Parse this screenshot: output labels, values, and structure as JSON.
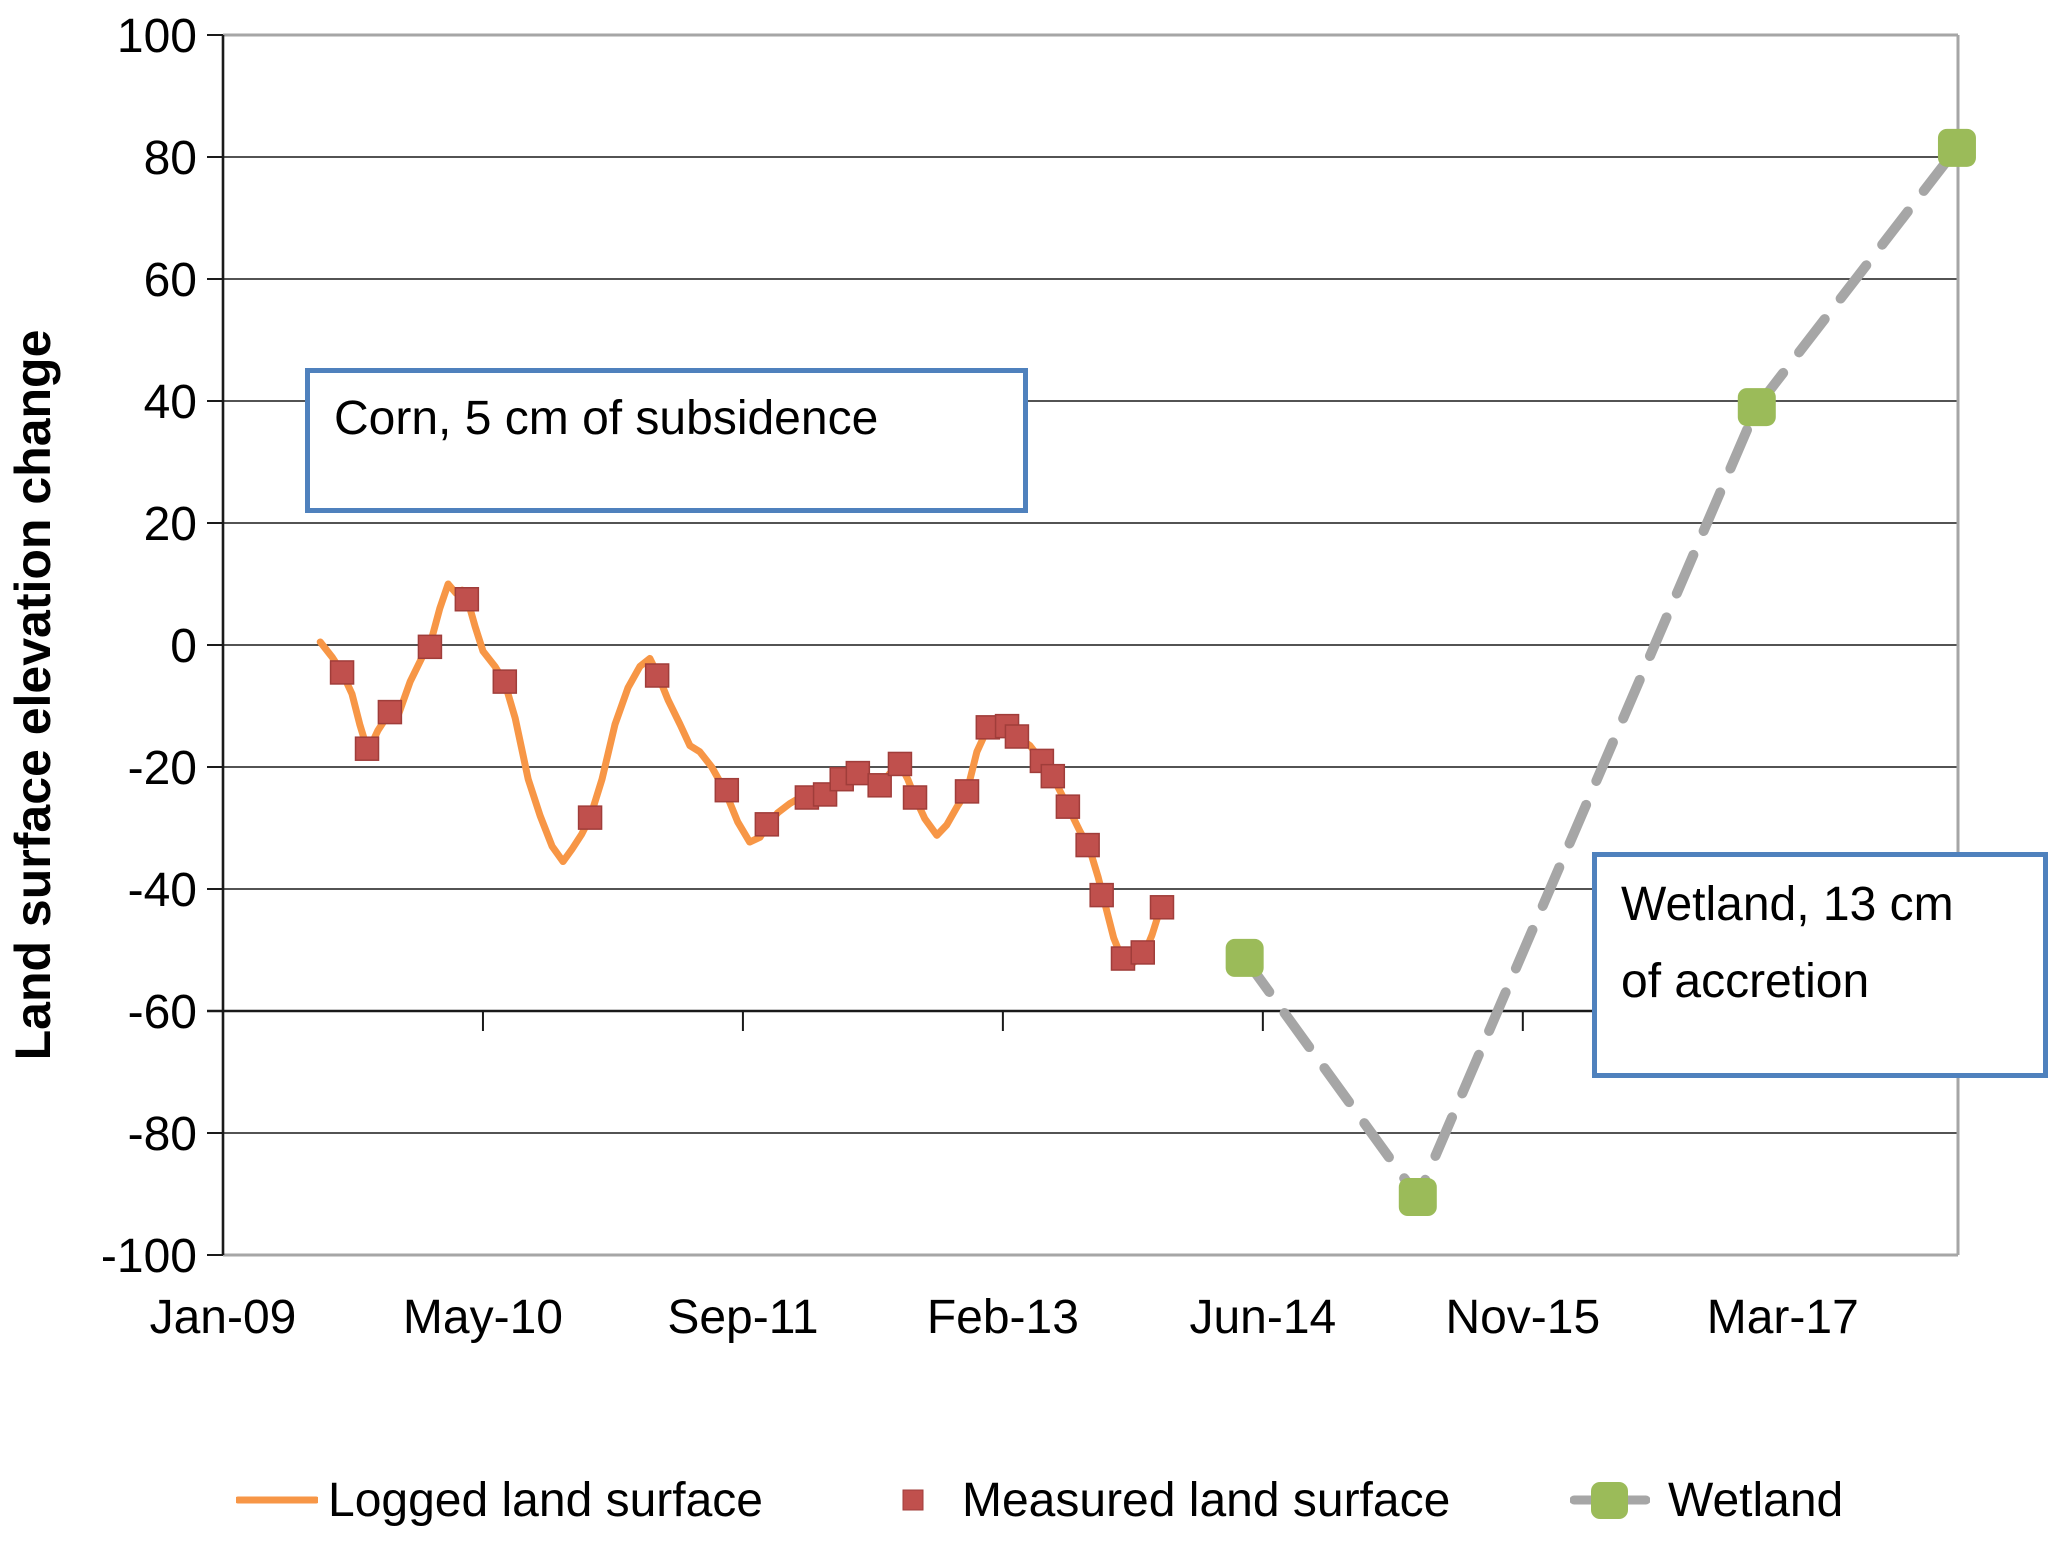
{
  "figure": {
    "y_axis_title": "Land surface elevation change",
    "annotations": {
      "corn": "Corn, 5 cm of subsidence",
      "wetland_line1": "Wetland, 13 cm",
      "wetland_line2": "of accretion"
    },
    "legend": [
      {
        "label": "Logged land surface",
        "swatch": "orange-line",
        "color": "#F79646"
      },
      {
        "label": "Measured land surface",
        "swatch": "red-square",
        "color": "#C0504D"
      },
      {
        "label": "Wetland",
        "swatch": "gray-line-green-square",
        "line_color": "#A6A6A6",
        "marker_color": "#9BBB59"
      }
    ],
    "colors": {
      "logged_line": "#F79646",
      "measured_marker": "#C0504D",
      "measured_marker_edge": "#A03D3A",
      "wetland_line": "#A6A6A6",
      "wetland_marker": "#9BBB59",
      "callout_border": "#4F81BD",
      "gridline": "#1a1a1a",
      "axis": "#1a1a1a",
      "plot_border": "#A6A6A6",
      "text": "#000000"
    }
  },
  "chart_data": {
    "type": "line",
    "title": "",
    "xlabel": "",
    "ylabel": "Land surface elevation change",
    "ylim": [
      -100,
      100
    ],
    "y_ticks": [
      100,
      80,
      60,
      40,
      20,
      0,
      -20,
      -40,
      -60,
      -80,
      -100
    ],
    "x_axis_note": "x in days since Jan-2009; major unit 500 days",
    "x_domain_days": [
      0,
      3337
    ],
    "x_ticks": [
      {
        "day": 0,
        "label": "Jan-09"
      },
      {
        "day": 500,
        "label": "May-10"
      },
      {
        "day": 1000,
        "label": "Sep-11"
      },
      {
        "day": 1500,
        "label": "Feb-13"
      },
      {
        "day": 2000,
        "label": "Jun-14"
      },
      {
        "day": 2500,
        "label": "Nov-15"
      },
      {
        "day": 3000,
        "label": "Mar-17"
      }
    ],
    "grid": true,
    "legend_position": "bottom",
    "category_axis_value": -60,
    "series": [
      {
        "name": "Logged land surface",
        "type": "line",
        "color": "#F79646",
        "points": [
          [
            187,
            0.5
          ],
          [
            210,
            -2
          ],
          [
            229,
            -4.5
          ],
          [
            248,
            -8
          ],
          [
            263,
            -13
          ],
          [
            279,
            -17.5
          ],
          [
            298,
            -14
          ],
          [
            321,
            -11
          ],
          [
            337,
            -11.5
          ],
          [
            360,
            -6
          ],
          [
            383,
            -2
          ],
          [
            398,
            0
          ],
          [
            417,
            6
          ],
          [
            433,
            10
          ],
          [
            448,
            8.5
          ],
          [
            460,
            9
          ],
          [
            469,
            7.8
          ],
          [
            485,
            3
          ],
          [
            500,
            -1
          ],
          [
            523,
            -3.5
          ],
          [
            542,
            -6.2
          ],
          [
            562,
            -12
          ],
          [
            587,
            -22
          ],
          [
            610,
            -28
          ],
          [
            633,
            -33
          ],
          [
            654,
            -35.5
          ],
          [
            671,
            -33.5
          ],
          [
            690,
            -31
          ],
          [
            706,
            -28.3
          ],
          [
            729,
            -22
          ],
          [
            754,
            -13
          ],
          [
            779,
            -7
          ],
          [
            802,
            -3.5
          ],
          [
            821,
            -2.2
          ],
          [
            837,
            -5
          ],
          [
            856,
            -9
          ],
          [
            879,
            -13
          ],
          [
            898,
            -16.5
          ],
          [
            917,
            -17.5
          ],
          [
            940,
            -20
          ],
          [
            965,
            -23.8
          ],
          [
            990,
            -29
          ],
          [
            1013,
            -32.3
          ],
          [
            1033,
            -31.5
          ],
          [
            1048,
            -29.5
          ],
          [
            1067,
            -27.5
          ],
          [
            1090,
            -26
          ],
          [
            1110,
            -25
          ],
          [
            1133,
            -24.2
          ],
          [
            1158,
            -24.5
          ],
          [
            1179,
            -22.8
          ],
          [
            1202,
            -21.8
          ],
          [
            1221,
            -20.8
          ],
          [
            1240,
            -21.8
          ],
          [
            1263,
            -23
          ],
          [
            1283,
            -21
          ],
          [
            1302,
            -19.5
          ],
          [
            1317,
            -22
          ],
          [
            1331,
            -25
          ],
          [
            1350,
            -28.5
          ],
          [
            1373,
            -31.2
          ],
          [
            1392,
            -29.5
          ],
          [
            1412,
            -26.5
          ],
          [
            1431,
            -24
          ],
          [
            1450,
            -17.5
          ],
          [
            1471,
            -13.6
          ],
          [
            1494,
            -12.8
          ],
          [
            1510,
            -13.2
          ],
          [
            1527,
            -15
          ],
          [
            1552,
            -16.5
          ],
          [
            1575,
            -19
          ],
          [
            1596,
            -21.6
          ],
          [
            1625,
            -26.5
          ],
          [
            1648,
            -30.5
          ],
          [
            1667,
            -33.5
          ],
          [
            1683,
            -38
          ],
          [
            1698,
            -43
          ],
          [
            1713,
            -48
          ],
          [
            1729,
            -51.4
          ],
          [
            1744,
            -52.5
          ],
          [
            1760,
            -51.5
          ],
          [
            1775,
            -50
          ],
          [
            1787,
            -47.5
          ],
          [
            1798,
            -44.5
          ],
          [
            1808,
            -43
          ]
        ]
      },
      {
        "name": "Measured land surface",
        "type": "scatter",
        "color": "#C0504D",
        "points": [
          [
            229,
            -4.5
          ],
          [
            277,
            -17
          ],
          [
            321,
            -11
          ],
          [
            398,
            -0.3
          ],
          [
            469,
            7.5
          ],
          [
            542,
            -6
          ],
          [
            706,
            -28.3
          ],
          [
            835,
            -5
          ],
          [
            969,
            -23.8
          ],
          [
            1046,
            -29.4
          ],
          [
            1123,
            -25
          ],
          [
            1158,
            -24.5
          ],
          [
            1190,
            -22
          ],
          [
            1221,
            -21
          ],
          [
            1263,
            -23
          ],
          [
            1302,
            -19.5
          ],
          [
            1331,
            -25
          ],
          [
            1431,
            -24
          ],
          [
            1471,
            -13.5
          ],
          [
            1508,
            -13.3
          ],
          [
            1527,
            -15
          ],
          [
            1575,
            -19
          ],
          [
            1596,
            -21.5
          ],
          [
            1625,
            -26.5
          ],
          [
            1663,
            -32.8
          ],
          [
            1690,
            -41
          ],
          [
            1731,
            -51.4
          ],
          [
            1769,
            -50.4
          ],
          [
            1806,
            -43
          ]
        ]
      },
      {
        "name": "Wetland",
        "type": "line+marker",
        "dashed": true,
        "line_color": "#A6A6A6",
        "marker_color": "#9BBB59",
        "points": [
          [
            1965,
            -51.3
          ],
          [
            2298,
            -90.5
          ],
          [
            2950,
            39
          ],
          [
            3335,
            81.5
          ]
        ]
      }
    ]
  }
}
